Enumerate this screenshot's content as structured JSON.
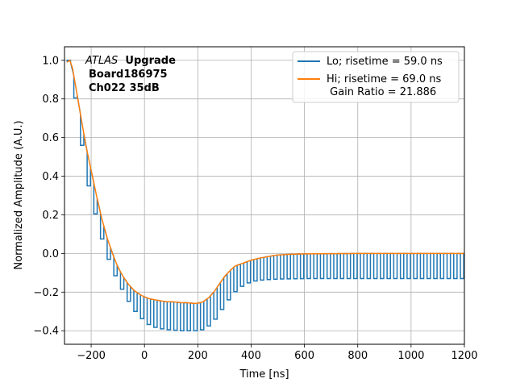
{
  "chart_data": {
    "type": "line",
    "xlabel": "Time [ns]",
    "ylabel": "Normalized Amplitude (A.U.)",
    "xlim": [
      -300,
      1200
    ],
    "ylim": [
      -0.47,
      1.07
    ],
    "xticks": [
      -200,
      0,
      200,
      400,
      600,
      800,
      1000,
      1200
    ],
    "xtick_labels": [
      "−200",
      "0",
      "200",
      "400",
      "600",
      "800",
      "1000",
      "1200"
    ],
    "yticks": [
      -0.4,
      -0.2,
      0.0,
      0.2,
      0.4,
      0.6,
      0.8,
      1.0
    ],
    "ytick_labels": [
      "−0.4",
      "−0.2",
      "0.0",
      "0.2",
      "0.4",
      "0.6",
      "0.8",
      "1.0"
    ],
    "grid": true,
    "legend_position": "top-right",
    "annotation": {
      "italic": "ATLAS",
      "bold": "Upgrade",
      "line2": "Board186975",
      "line3": "Ch022 35dB"
    },
    "series": [
      {
        "name": "Lo; risetime = 59.0 ns",
        "color": "#1f77b4",
        "points": [
          [
            -290,
            1.0
          ],
          [
            -280,
            0.95
          ],
          [
            -270,
            0.86
          ],
          [
            -260,
            0.75
          ],
          [
            -250,
            0.65
          ],
          [
            -240,
            0.56
          ],
          [
            -230,
            0.47
          ],
          [
            -220,
            0.38
          ],
          [
            -200,
            0.26
          ],
          [
            -180,
            0.15
          ],
          [
            -160,
            0.05
          ],
          [
            -140,
            -0.03
          ],
          [
            -120,
            -0.1
          ],
          [
            -100,
            -0.16
          ],
          [
            -80,
            -0.21
          ],
          [
            -60,
            -0.26
          ],
          [
            -40,
            -0.3
          ],
          [
            -20,
            -0.33
          ],
          [
            0,
            -0.36
          ],
          [
            20,
            -0.375
          ],
          [
            40,
            -0.385
          ],
          [
            60,
            -0.39
          ],
          [
            80,
            -0.395
          ],
          [
            100,
            -0.395
          ],
          [
            120,
            -0.4
          ],
          [
            140,
            -0.4
          ],
          [
            160,
            -0.4
          ],
          [
            180,
            -0.4
          ],
          [
            200,
            -0.4
          ],
          [
            220,
            -0.39
          ],
          [
            240,
            -0.37
          ],
          [
            260,
            -0.34
          ],
          [
            280,
            -0.3
          ],
          [
            300,
            -0.26
          ],
          [
            320,
            -0.22
          ],
          [
            340,
            -0.19
          ],
          [
            360,
            -0.17
          ],
          [
            380,
            -0.155
          ],
          [
            400,
            -0.145
          ],
          [
            420,
            -0.14
          ],
          [
            440,
            -0.137
          ],
          [
            460,
            -0.135
          ],
          [
            480,
            -0.133
          ],
          [
            500,
            -0.132
          ],
          [
            550,
            -0.131
          ],
          [
            600,
            -0.13
          ],
          [
            700,
            -0.13
          ],
          [
            800,
            -0.13
          ],
          [
            900,
            -0.13
          ],
          [
            1000,
            -0.13
          ],
          [
            1100,
            -0.13
          ],
          [
            1200,
            -0.13
          ]
        ]
      },
      {
        "name": "Hi; risetime = 69.0 ns\n Gain Ratio = 21.886",
        "color": "#ff7f0e",
        "points": [
          [
            -290,
            0.99
          ],
          [
            -280,
            1.0
          ],
          [
            -270,
            0.96
          ],
          [
            -260,
            0.88
          ],
          [
            -250,
            0.8
          ],
          [
            -240,
            0.72
          ],
          [
            -230,
            0.64
          ],
          [
            -220,
            0.56
          ],
          [
            -200,
            0.43
          ],
          [
            -180,
            0.3
          ],
          [
            -160,
            0.18
          ],
          [
            -140,
            0.08
          ],
          [
            -120,
            0.0
          ],
          [
            -100,
            -0.07
          ],
          [
            -80,
            -0.12
          ],
          [
            -60,
            -0.16
          ],
          [
            -40,
            -0.19
          ],
          [
            -20,
            -0.21
          ],
          [
            0,
            -0.225
          ],
          [
            20,
            -0.235
          ],
          [
            40,
            -0.24
          ],
          [
            60,
            -0.245
          ],
          [
            80,
            -0.25
          ],
          [
            100,
            -0.25
          ],
          [
            120,
            -0.252
          ],
          [
            140,
            -0.255
          ],
          [
            160,
            -0.255
          ],
          [
            180,
            -0.258
          ],
          [
            200,
            -0.258
          ],
          [
            220,
            -0.25
          ],
          [
            240,
            -0.23
          ],
          [
            260,
            -0.2
          ],
          [
            280,
            -0.16
          ],
          [
            300,
            -0.12
          ],
          [
            320,
            -0.09
          ],
          [
            340,
            -0.065
          ],
          [
            360,
            -0.055
          ],
          [
            380,
            -0.045
          ],
          [
            400,
            -0.035
          ],
          [
            420,
            -0.028
          ],
          [
            440,
            -0.022
          ],
          [
            460,
            -0.017
          ],
          [
            480,
            -0.012
          ],
          [
            500,
            -0.008
          ],
          [
            550,
            -0.004
          ],
          [
            600,
            -0.002
          ],
          [
            700,
            -0.001
          ],
          [
            800,
            0.0
          ],
          [
            900,
            0.0
          ],
          [
            1000,
            0.0
          ],
          [
            1100,
            0.0
          ],
          [
            1200,
            0.0
          ]
        ]
      }
    ],
    "lo_step_ns": 25
  }
}
